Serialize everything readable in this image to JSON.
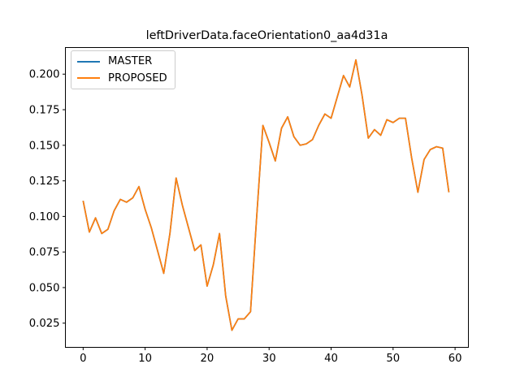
{
  "title": "leftDriverData.faceOrientation0_aa4d31a",
  "legend": {
    "position": "upper left",
    "entries": [
      {
        "label": "MASTER",
        "color": "#1f77b4"
      },
      {
        "label": "PROPOSED",
        "color": "#ff7f0e"
      }
    ]
  },
  "chart_data": {
    "type": "line",
    "title": "leftDriverData.faceOrientation0_aa4d31a",
    "xlabel": "",
    "ylabel": "",
    "grid": false,
    "legend_position": "upper left",
    "overlap_note": "MASTER and PROPOSED curves coincide exactly; the orange PROPOSED line is drawn on top so only it is visible along the path",
    "x": [
      0,
      1,
      2,
      3,
      4,
      5,
      6,
      7,
      8,
      9,
      10,
      11,
      12,
      13,
      14,
      15,
      16,
      17,
      18,
      19,
      20,
      21,
      22,
      23,
      24,
      25,
      26,
      27,
      28,
      29,
      30,
      31,
      32,
      33,
      34,
      35,
      36,
      37,
      38,
      39,
      40,
      41,
      42,
      43,
      44,
      45,
      46,
      47,
      48,
      49,
      50,
      51,
      52,
      53,
      54,
      55,
      56,
      57,
      58,
      59
    ],
    "series": [
      {
        "name": "MASTER",
        "color": "#1f77b4",
        "values": [
          0.111,
          0.089,
          0.099,
          0.088,
          0.091,
          0.104,
          0.112,
          0.11,
          0.113,
          0.121,
          0.105,
          0.092,
          0.076,
          0.06,
          0.088,
          0.127,
          0.108,
          0.092,
          0.076,
          0.08,
          0.051,
          0.066,
          0.088,
          0.044,
          0.02,
          0.028,
          0.028,
          0.033,
          0.1,
          0.164,
          0.152,
          0.139,
          0.162,
          0.17,
          0.156,
          0.15,
          0.151,
          0.154,
          0.164,
          0.172,
          0.169,
          0.184,
          0.199,
          0.191,
          0.21,
          0.185,
          0.155,
          0.161,
          0.157,
          0.168,
          0.166,
          0.169,
          0.169,
          0.141,
          0.117,
          0.14,
          0.147,
          0.149,
          0.148,
          0.117
        ]
      },
      {
        "name": "PROPOSED",
        "color": "#ff7f0e",
        "values": [
          0.111,
          0.089,
          0.099,
          0.088,
          0.091,
          0.104,
          0.112,
          0.11,
          0.113,
          0.121,
          0.105,
          0.092,
          0.076,
          0.06,
          0.088,
          0.127,
          0.108,
          0.092,
          0.076,
          0.08,
          0.051,
          0.066,
          0.088,
          0.044,
          0.02,
          0.028,
          0.028,
          0.033,
          0.1,
          0.164,
          0.152,
          0.139,
          0.162,
          0.17,
          0.156,
          0.15,
          0.151,
          0.154,
          0.164,
          0.172,
          0.169,
          0.184,
          0.199,
          0.191,
          0.21,
          0.185,
          0.155,
          0.161,
          0.157,
          0.168,
          0.166,
          0.169,
          0.169,
          0.141,
          0.117,
          0.14,
          0.147,
          0.149,
          0.148,
          0.117
        ]
      }
    ],
    "xticks": [
      0,
      10,
      20,
      30,
      40,
      50,
      60
    ],
    "xtick_labels": [
      "0",
      "10",
      "20",
      "30",
      "40",
      "50",
      "60"
    ],
    "yticks": [
      0.025,
      0.05,
      0.075,
      0.1,
      0.125,
      0.15,
      0.175,
      0.2
    ],
    "ytick_labels": [
      "0.025",
      "0.050",
      "0.075",
      "0.100",
      "0.125",
      "0.150",
      "0.175",
      "0.200"
    ],
    "xlim": [
      -2.86,
      62.15
    ],
    "ylim": [
      0.008,
      0.2187
    ]
  }
}
